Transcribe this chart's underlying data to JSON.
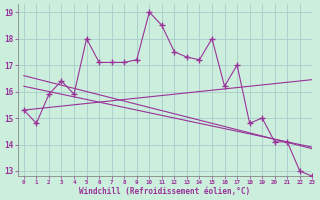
{
  "x": [
    0,
    1,
    2,
    3,
    4,
    5,
    6,
    7,
    8,
    9,
    10,
    11,
    12,
    13,
    14,
    15,
    16,
    17,
    18,
    19,
    20,
    21,
    22,
    23
  ],
  "curve": [
    15.3,
    14.8,
    15.9,
    16.4,
    15.9,
    18.0,
    17.1,
    17.1,
    17.1,
    17.2,
    19.0,
    18.5,
    17.5,
    17.3,
    17.2,
    18.0,
    16.2,
    17.0,
    14.8,
    15.0,
    14.1,
    14.1,
    13.0,
    12.8
  ],
  "line_a": [
    16.6,
    16.48,
    16.36,
    16.24,
    16.12,
    16.0,
    15.88,
    15.76,
    15.64,
    15.52,
    15.4,
    15.28,
    15.16,
    15.04,
    14.92,
    14.8,
    14.68,
    14.56,
    14.44,
    14.32,
    14.2,
    14.08,
    13.96,
    13.84
  ],
  "line_b": [
    15.3,
    15.35,
    15.4,
    15.45,
    15.5,
    15.55,
    15.6,
    15.65,
    15.7,
    15.75,
    15.8,
    15.85,
    15.9,
    15.95,
    16.0,
    16.05,
    16.1,
    16.15,
    16.2,
    16.25,
    16.3,
    16.35,
    16.4,
    16.45
  ],
  "line_c": [
    16.2,
    16.1,
    16.0,
    15.9,
    15.8,
    15.7,
    15.6,
    15.5,
    15.4,
    15.3,
    15.2,
    15.1,
    15.0,
    14.9,
    14.8,
    14.7,
    14.6,
    14.5,
    14.4,
    14.3,
    14.2,
    14.1,
    14.0,
    13.9
  ],
  "color": "#993399",
  "bg_color": "#cceedd",
  "grid_color": "#aacccc",
  "xlabel": "Windchill (Refroidissement éolien,°C)",
  "ylim": [
    12.8,
    19.3
  ],
  "xlim": [
    -0.5,
    23
  ],
  "yticks": [
    13,
    14,
    15,
    16,
    17,
    18,
    19
  ],
  "xticks": [
    0,
    1,
    2,
    3,
    4,
    5,
    6,
    7,
    8,
    9,
    10,
    11,
    12,
    13,
    14,
    15,
    16,
    17,
    18,
    19,
    20,
    21,
    22,
    23
  ]
}
